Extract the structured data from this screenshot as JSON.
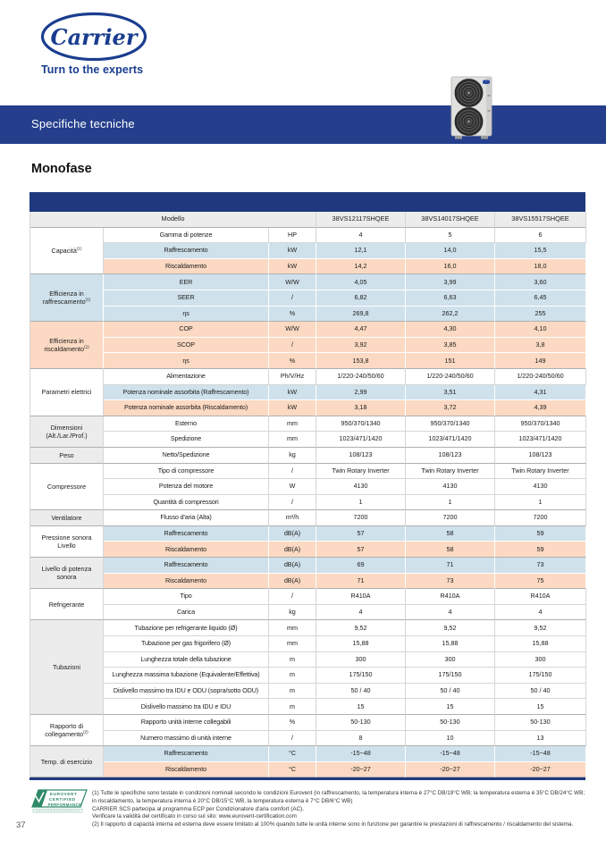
{
  "colors": {
    "brand_blue": "#1a3d8f",
    "banner_blue": "#253f8c",
    "table_bar_blue": "#20397e",
    "row_blue": "#cfe1eb",
    "row_peach": "#fbd9c2",
    "row_gray": "#ececec",
    "eurovent_green": "#2e8a67"
  },
  "header": {
    "logo_text": "Carrier",
    "tagline": "Turn to the experts",
    "banner_title": "Specifiche tecniche"
  },
  "page": {
    "section_title": "Monofase",
    "page_number": "37"
  },
  "table": {
    "model_label": "Modello",
    "models": [
      "38VS12117SHQEE",
      "38VS14017SHQEE",
      "38VS15517SHQEE"
    ],
    "groups": [
      {
        "category": "Capacità",
        "sup": "(1)",
        "tone": "plain",
        "rows": [
          {
            "label": "Gamma di potenze",
            "unit": "HP",
            "tone": "plain",
            "values": [
              "4",
              "5",
              "6"
            ]
          },
          {
            "label": "Raffrescamento",
            "unit": "kW",
            "tone": "blue",
            "values": [
              "12,1",
              "14,0",
              "15,5"
            ]
          },
          {
            "label": "Riscaldamento",
            "unit": "kW",
            "tone": "peach",
            "values": [
              "14,2",
              "16,0",
              "18,0"
            ]
          }
        ]
      },
      {
        "category": "Efficienza in raffrescamento",
        "sup": "(1)",
        "tone": "blue",
        "rows": [
          {
            "label": "EER",
            "unit": "W/W",
            "tone": "blue",
            "values": [
              "4,05",
              "3,99",
              "3,60"
            ]
          },
          {
            "label": "SEER",
            "unit": "/",
            "tone": "blue",
            "values": [
              "6,82",
              "6,63",
              "6,45"
            ]
          },
          {
            "label": "ηs",
            "unit": "%",
            "tone": "blue",
            "values": [
              "269,8",
              "262,2",
              "255"
            ]
          }
        ]
      },
      {
        "category": "Efficienza in riscaldamento",
        "sup": "(1)",
        "tone": "peach",
        "rows": [
          {
            "label": "COP",
            "unit": "W/W",
            "tone": "peach",
            "values": [
              "4,47",
              "4,30",
              "4,10"
            ]
          },
          {
            "label": "SCOP",
            "unit": "/",
            "tone": "peach",
            "values": [
              "3,92",
              "3,85",
              "3,8"
            ]
          },
          {
            "label": "ηs",
            "unit": "%",
            "tone": "peach",
            "values": [
              "153,8",
              "151",
              "149"
            ]
          }
        ]
      },
      {
        "category": "Parametri elettrici",
        "sup": "",
        "tone": "plain",
        "rows": [
          {
            "label": "Alimentazione",
            "unit": "Ph/V/Hz",
            "tone": "plain",
            "values": [
              "1/220-240/50/60",
              "1/220-240/50/60",
              "1/220-240/50/60"
            ]
          },
          {
            "label": "Potenza nominale assorbita (Raffrescamento)",
            "unit": "kW",
            "tone": "blue",
            "values": [
              "2,99",
              "3,51",
              "4,31"
            ]
          },
          {
            "label": "Potenza nominale assorbita (Riscaldamento)",
            "unit": "kW",
            "tone": "peach",
            "values": [
              "3,18",
              "3,72",
              "4,39"
            ]
          }
        ]
      },
      {
        "category": "Dimensioni (Alt./Lar./Prof.)",
        "sup": "",
        "tone": "gray",
        "rows": [
          {
            "label": "Esterno",
            "unit": "mm",
            "tone": "plain",
            "values": [
              "950/370/1340",
              "950/370/1340",
              "950/370/1340"
            ]
          },
          {
            "label": "Spedizione",
            "unit": "mm",
            "tone": "plain",
            "values": [
              "1023/471/1420",
              "1023/471/1420",
              "1023/471/1420"
            ]
          }
        ]
      },
      {
        "category": "Peso",
        "sup": "",
        "tone": "gray",
        "rows": [
          {
            "label": "Netto/Spedizione",
            "unit": "kg",
            "tone": "plain",
            "values": [
              "108/123",
              "108/123",
              "108/123"
            ]
          }
        ]
      },
      {
        "category": "Compressore",
        "sup": "",
        "tone": "plain",
        "rows": [
          {
            "label": "Tipo di compressore",
            "unit": "/",
            "tone": "plain",
            "values": [
              "Twin Rotary Inverter",
              "Twin Rotary Inverter",
              "Twin Rotary Inverter"
            ]
          },
          {
            "label": "Potenza del motore",
            "unit": "W",
            "tone": "plain",
            "values": [
              "4130",
              "4130",
              "4130"
            ]
          },
          {
            "label": "Quantità di compressori",
            "unit": "/",
            "tone": "plain",
            "values": [
              "1",
              "1",
              "1"
            ]
          }
        ]
      },
      {
        "category": "Ventilatore",
        "sup": "",
        "tone": "gray",
        "rows": [
          {
            "label": "Flusso d'aria (Alta)",
            "unit": "m³/h",
            "tone": "plain",
            "values": [
              "7200",
              "7200",
              "7200"
            ]
          }
        ]
      },
      {
        "category": "Pressione sonora Livello",
        "sup": "",
        "tone": "plain",
        "rows": [
          {
            "label": "Raffrescamento",
            "unit": "dB(A)",
            "tone": "blue",
            "values": [
              "57",
              "58",
              "59"
            ]
          },
          {
            "label": "Riscaldamento",
            "unit": "dB(A)",
            "tone": "peach",
            "values": [
              "57",
              "58",
              "59"
            ]
          }
        ]
      },
      {
        "category": "Livello di potenza sonora",
        "sup": "",
        "tone": "gray",
        "rows": [
          {
            "label": "Raffrescamento",
            "unit": "dB(A)",
            "tone": "blue",
            "values": [
              "69",
              "71",
              "73"
            ]
          },
          {
            "label": "Riscaldamento",
            "unit": "dB(A)",
            "tone": "peach",
            "values": [
              "71",
              "73",
              "75"
            ]
          }
        ]
      },
      {
        "category": "Refrigerante",
        "sup": "",
        "tone": "plain",
        "rows": [
          {
            "label": "Tipo",
            "unit": "/",
            "tone": "plain",
            "values": [
              "R410A",
              "R410A",
              "R410A"
            ]
          },
          {
            "label": "Carica",
            "unit": "kg",
            "tone": "plain",
            "values": [
              "4",
              "4",
              "4"
            ]
          }
        ]
      },
      {
        "category": "Tubazioni",
        "sup": "",
        "tone": "gray",
        "rows": [
          {
            "label": "Tubazione per refrigerante liquido (Ø)",
            "unit": "mm",
            "tone": "plain",
            "values": [
              "9,52",
              "9,52",
              "9,52"
            ]
          },
          {
            "label": "Tubazione per gas frigorifero (Ø)",
            "unit": "mm",
            "tone": "plain",
            "values": [
              "15,88",
              "15,88",
              "15,88"
            ]
          },
          {
            "label": "Lunghezza totale della tubazione",
            "unit": "m",
            "tone": "plain",
            "values": [
              "300",
              "300",
              "300"
            ]
          },
          {
            "label": "Lunghezza massima tubazione (Equivalente/Effettiva)",
            "unit": "m",
            "tone": "plain",
            "values": [
              "175/150",
              "175/150",
              "175/150"
            ]
          },
          {
            "label": "Dislivello massimo tra IDU e ODU (sopra/sotto ODU)",
            "unit": "m",
            "tone": "plain",
            "values": [
              "50 / 40",
              "50 / 40",
              "50 / 40"
            ]
          },
          {
            "label": "Dislivello massimo tra IDU e IDU",
            "unit": "m",
            "tone": "plain",
            "values": [
              "15",
              "15",
              "15"
            ]
          }
        ]
      },
      {
        "category": "Rapporto di collegamento",
        "sup": "(2)",
        "tone": "plain",
        "rows": [
          {
            "label": "Rapporto unità interne collegabili",
            "unit": "%",
            "tone": "plain",
            "values": [
              "50-130",
              "50-130",
              "50-130"
            ]
          },
          {
            "label": "Numero massimo di unità interne",
            "unit": "/",
            "tone": "plain",
            "values": [
              "8",
              "10",
              "13"
            ]
          }
        ]
      },
      {
        "category": "Temp. di esercizio",
        "sup": "",
        "tone": "gray",
        "rows": [
          {
            "label": "Raffrescamento",
            "unit": "°C",
            "tone": "blue",
            "values": [
              "-15~48",
              "-15~48",
              "-15~48"
            ]
          },
          {
            "label": "Riscaldamento",
            "unit": "°C",
            "tone": "peach",
            "values": [
              "-20~27",
              "-20~27",
              "-20~27"
            ]
          }
        ]
      }
    ]
  },
  "eurovent": {
    "text": [
      "EUROVENT",
      "CERTIFIED",
      "PERFORMANCE"
    ]
  },
  "footnotes": {
    "lines": [
      "(1) Tutte le specifiche sono testate in condizioni nominali secondo le condizioni Eurovent (in raffrescamento, la temperatura interna è 27°C DB/19°C WB; la temperatura esterna è 35°C DB/24°C WB;",
      "in riscaldamento, la temperatura interna è 20°C DB/15°C WB, la temperatura esterna è 7°C DB/6°C WB)",
      "CARRIER SCS partecipa al programma ECP per Condizionatore d'aria comfort (AC).",
      "Verificare la validità del certificato in corso sul sito: www.eurovent-certification.com",
      "(2) Il rapporto di capacità interna ed esterna deve essere limitato al 100% quando tutte le unità interne sono in funzione per garantire le prestazioni di raffrescamento / riscaldamento del sistema."
    ]
  }
}
